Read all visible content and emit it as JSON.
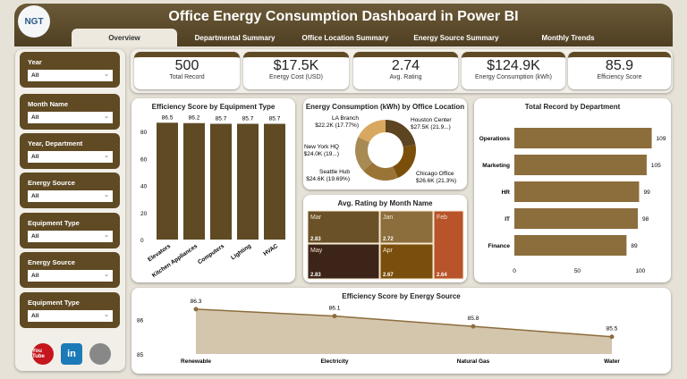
{
  "header": {
    "title": "Office Energy Consumption Dashboard in Power BI",
    "logo_text": "NGT"
  },
  "tabs": [
    {
      "label": "Overview",
      "active": true
    },
    {
      "label": "Departmental Summary"
    },
    {
      "label": "Office Location Summary"
    },
    {
      "label": "Energy Source Summary"
    },
    {
      "label": "Monthly Trends"
    }
  ],
  "slicers": [
    {
      "label": "Year",
      "value": "All"
    },
    {
      "label": "Month Name",
      "value": "All"
    },
    {
      "label": "Year, Department",
      "value": "All"
    },
    {
      "label": "Energy Source",
      "value": "All"
    },
    {
      "label": "Equipment Type",
      "value": "All"
    },
    {
      "label": "Energy Source",
      "value": "All"
    },
    {
      "label": "Equipment Type",
      "value": "All"
    }
  ],
  "social": [
    {
      "icon": "youtube-icon",
      "text": "You Tube",
      "color": "#c4161c"
    },
    {
      "icon": "linkedin-icon",
      "text": "in",
      "color": "#1d7ab8"
    },
    {
      "icon": "globe-icon",
      "text": "",
      "color": "#888888"
    }
  ],
  "kpis": [
    {
      "value": "500",
      "label": "Total Record"
    },
    {
      "value": "$17.5K",
      "label": "Energy Cost (USD)"
    },
    {
      "value": "2.74",
      "label": "Avg. Rating"
    },
    {
      "value": "$124.9K",
      "label": "Energy Consumption (kWh)"
    },
    {
      "value": "85.9",
      "label": "Efficiency Score"
    }
  ],
  "chart_data": [
    {
      "type": "bar",
      "title": "Efficiency Score by Equipment Type",
      "categories": [
        "Elevators",
        "Kitchen Appliances",
        "Computers",
        "Lighting",
        "HVAC"
      ],
      "values": [
        86.5,
        86.2,
        85.7,
        85.7,
        85.7
      ],
      "data_labels": [
        "86.5",
        "86.2",
        "85.7",
        "85.7",
        "85.7"
      ],
      "yticks": [
        "0",
        "20",
        "40",
        "60",
        "80"
      ],
      "ylim": [
        0,
        90
      ],
      "color": "#5f4a24"
    },
    {
      "type": "pie",
      "title": "Energy Consumption (kWh) by Office Location",
      "donut": true,
      "slices": [
        {
          "name": "Houston Center",
          "value": 27.5,
          "label": "$27.5K (21.9...)",
          "color": "#5c4520"
        },
        {
          "name": "Chicago Office",
          "value": 26.6,
          "label": "$26.6K (21.3%)",
          "color": "#7a4f0a"
        },
        {
          "name": "Seattle Hub",
          "value": 24.6,
          "label": "$24.6K (19.69%)",
          "color": "#9a7437"
        },
        {
          "name": "New York HQ",
          "value": 24.0,
          "label": "$24.0K (19...)",
          "color": "#a88a55"
        },
        {
          "name": "LA Branch",
          "value": 22.2,
          "label": "$22.2K (17.77%)",
          "color": "#d9a860"
        }
      ]
    },
    {
      "type": "heatmap",
      "title": "Avg. Rating by Month Name",
      "cells": [
        {
          "name": "Mar",
          "value": "2.83",
          "color": "#6a5128"
        },
        {
          "name": "Jan",
          "value": "2.72",
          "color": "#8c6d3c"
        },
        {
          "name": "Feb",
          "value": "2.64",
          "color": "#b8532a"
        },
        {
          "name": "May",
          "value": "2.83",
          "color": "#3d2418"
        },
        {
          "name": "Apr",
          "value": "2.67",
          "color": "#7a4e0c"
        }
      ]
    },
    {
      "type": "bar",
      "orientation": "horizontal",
      "title": "Total Record by Department",
      "categories": [
        "Operations",
        "Marketing",
        "HR",
        "IT",
        "Finance"
      ],
      "values": [
        109,
        105,
        99,
        98,
        89
      ],
      "xticks": [
        "0",
        "50",
        "100"
      ],
      "xlim": [
        0,
        115
      ],
      "color": "#8c6d3c"
    },
    {
      "type": "area",
      "title": "Efficiency Score by Energy Source",
      "categories": [
        "Renewable",
        "Electricity",
        "Natural Gas",
        "Water"
      ],
      "values": [
        86.3,
        86.1,
        85.8,
        85.5
      ],
      "data_labels": [
        "86.3",
        "86.1",
        "85.8",
        "85.5"
      ],
      "yticks": [
        "85",
        "86"
      ],
      "ylim": [
        85,
        86.4
      ],
      "color": "#8c6d3c"
    }
  ]
}
